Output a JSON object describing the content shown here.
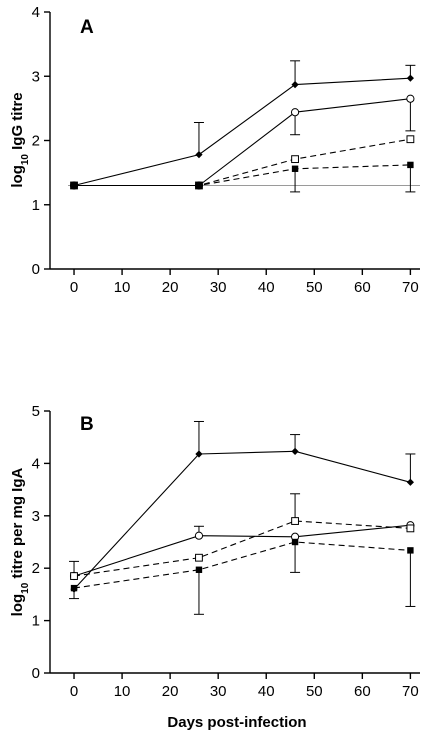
{
  "chart_data": [
    {
      "type": "line",
      "panel_label": "A",
      "ylabel_main": "log",
      "ylabel_sub": "10",
      "ylabel_rest": " IgG titre",
      "xlabel": "",
      "xlim": [
        -5,
        72
      ],
      "ylim": [
        0,
        4
      ],
      "xticks": [
        0,
        10,
        20,
        30,
        40,
        50,
        60,
        70
      ],
      "yticks": [
        0,
        1,
        2,
        3,
        4
      ],
      "reference_line": 1.3,
      "series": [
        {
          "marker": "diamond",
          "dash": false,
          "x": [
            0,
            26,
            46,
            70
          ],
          "y": [
            1.3,
            1.78,
            2.87,
            2.97
          ],
          "err_up": [
            0,
            0.5,
            0.37,
            0.2
          ],
          "err_down": [
            0,
            0,
            0,
            0
          ]
        },
        {
          "marker": "circle-open",
          "dash": false,
          "x": [
            0,
            26,
            46,
            70
          ],
          "y": [
            1.3,
            1.3,
            2.44,
            2.65
          ],
          "err_up": [
            0,
            0,
            0,
            0
          ],
          "err_down": [
            0,
            0,
            0.35,
            0.5
          ]
        },
        {
          "marker": "square-open",
          "dash": true,
          "x": [
            0,
            26,
            46,
            70
          ],
          "y": [
            1.3,
            1.3,
            1.71,
            2.02
          ],
          "err_up": [
            0,
            0,
            0,
            0
          ],
          "err_down": [
            0,
            0,
            0,
            0
          ]
        },
        {
          "marker": "square-filled",
          "dash": true,
          "x": [
            0,
            26,
            46,
            70
          ],
          "y": [
            1.3,
            1.3,
            1.56,
            1.62
          ],
          "err_up": [
            0,
            0,
            0,
            0
          ],
          "err_down": [
            0,
            0,
            0.36,
            0.42
          ]
        }
      ]
    },
    {
      "type": "line",
      "panel_label": "B",
      "ylabel_main": "log",
      "ylabel_sub": "10",
      "ylabel_rest": " titre per mg IgA",
      "xlabel": "Days post-infection",
      "xlim": [
        -5,
        72
      ],
      "ylim": [
        0,
        5
      ],
      "xticks": [
        0,
        10,
        20,
        30,
        40,
        50,
        60,
        70
      ],
      "yticks": [
        0,
        1,
        2,
        3,
        4,
        5
      ],
      "series": [
        {
          "marker": "diamond",
          "dash": false,
          "x": [
            0,
            26,
            46,
            70
          ],
          "y": [
            1.6,
            4.18,
            4.23,
            3.64
          ],
          "err_up": [
            0,
            0.62,
            0.32,
            0.54
          ],
          "err_down": [
            0,
            0,
            0,
            0
          ]
        },
        {
          "marker": "circle-open",
          "dash": false,
          "x": [
            0,
            26,
            46,
            70
          ],
          "y": [
            1.85,
            2.62,
            2.6,
            2.82
          ],
          "err_up": [
            0,
            0.18,
            0,
            0
          ],
          "err_down": [
            0,
            0,
            0,
            0
          ]
        },
        {
          "marker": "square-open",
          "dash": true,
          "x": [
            0,
            26,
            46,
            70
          ],
          "y": [
            1.85,
            2.2,
            2.9,
            2.76
          ],
          "err_up": [
            0.28,
            0,
            0.52,
            0
          ],
          "err_down": [
            0,
            0,
            0,
            0
          ]
        },
        {
          "marker": "square-filled",
          "dash": true,
          "x": [
            0,
            26,
            46,
            70
          ],
          "y": [
            1.62,
            1.97,
            2.5,
            2.34
          ],
          "err_up": [
            0,
            0,
            0,
            0
          ],
          "err_down": [
            0.2,
            0.85,
            0.58,
            1.07
          ]
        }
      ]
    }
  ]
}
